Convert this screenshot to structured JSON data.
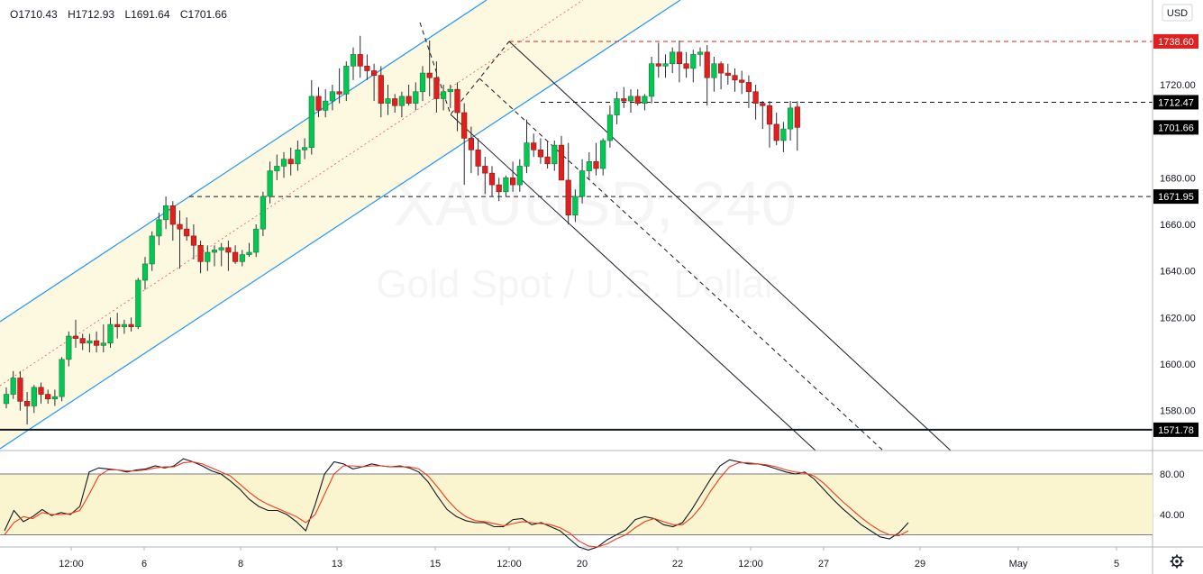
{
  "legend": {
    "open": "O1710.43",
    "high": "H1712.93",
    "low": "L1691.64",
    "close": "C1701.66"
  },
  "currency": "USD",
  "watermark": {
    "symbol": "XAUUSD, 240",
    "name": "Gold Spot / U.S. Dollar"
  },
  "colors": {
    "up": "#26a69a",
    "up_fill": "#00c853",
    "down": "#e0201e",
    "channel": "#2196f3",
    "channel_fill": "#fdf8e0",
    "stoch_band": "#fbf5cf",
    "k_line": "#131722",
    "d_line": "#f23a1e"
  },
  "settings_icon": "gear-icon",
  "chart_data": [
    {
      "type": "candlestick",
      "title": "",
      "ylim": [
        1560,
        1750
      ],
      "y_ticks": [
        1580,
        1600,
        1620,
        1640,
        1660,
        1680,
        1700,
        1720
      ],
      "y_tick_labels": [
        "1580.00",
        "1600.00",
        "1620.00",
        "1640.00",
        "1660.00",
        "1680.00",
        "1700.00",
        "1720.00"
      ],
      "x_tick_labels": [
        "12:00",
        "6",
        "8",
        "13",
        "15",
        "12:00",
        "20",
        "22",
        "12:00",
        "27",
        "29",
        "May",
        "5"
      ],
      "price_labels": [
        {
          "value": 1738.6,
          "label": "1738.60",
          "style": "red"
        },
        {
          "value": 1712.47,
          "label": "1712.47",
          "style": "dark"
        },
        {
          "value": 1701.66,
          "label": "1701.66",
          "style": "dark"
        },
        {
          "value": 1671.95,
          "label": "1671.95",
          "style": "dark"
        },
        {
          "value": 1571.78,
          "label": "1571.78",
          "style": "dark"
        }
      ],
      "horizontal_lines": [
        {
          "value": 1738.6,
          "style": "red-dashed"
        },
        {
          "value": 1712.47,
          "style": "dashed"
        },
        {
          "value": 1671.95,
          "style": "dashed"
        },
        {
          "value": 1571.78,
          "style": "solid-thick"
        }
      ],
      "candles": [
        [
          1583,
          1590,
          1581,
          1587
        ],
        [
          1587,
          1597,
          1585,
          1594
        ],
        [
          1594,
          1597,
          1580,
          1584
        ],
        [
          1584,
          1588,
          1574,
          1582
        ],
        [
          1582,
          1591,
          1579,
          1590
        ],
        [
          1590,
          1592,
          1583,
          1587
        ],
        [
          1587,
          1589,
          1583,
          1585
        ],
        [
          1585,
          1589,
          1582,
          1586
        ],
        [
          1586,
          1603,
          1584,
          1602
        ],
        [
          1602,
          1614,
          1599,
          1612
        ],
        [
          1612,
          1619,
          1607,
          1611
        ],
        [
          1611,
          1613,
          1606,
          1609
        ],
        [
          1609,
          1613,
          1605,
          1610
        ],
        [
          1610,
          1614,
          1605,
          1608
        ],
        [
          1608,
          1617,
          1605,
          1609
        ],
        [
          1609,
          1620,
          1607,
          1617
        ],
        [
          1617,
          1622,
          1611,
          1616
        ],
        [
          1616,
          1619,
          1613,
          1617
        ],
        [
          1617,
          1620,
          1614,
          1616
        ],
        [
          1616,
          1637,
          1615,
          1636
        ],
        [
          1636,
          1646,
          1632,
          1643
        ],
        [
          1643,
          1657,
          1640,
          1655
        ],
        [
          1655,
          1665,
          1651,
          1662
        ],
        [
          1662,
          1672,
          1658,
          1668
        ],
        [
          1668,
          1670,
          1653,
          1660
        ],
        [
          1660,
          1666,
          1641,
          1658
        ],
        [
          1658,
          1663,
          1653,
          1655
        ],
        [
          1655,
          1660,
          1645,
          1651
        ],
        [
          1651,
          1653,
          1639,
          1644
        ],
        [
          1644,
          1651,
          1640,
          1648
        ],
        [
          1648,
          1651,
          1642,
          1649
        ],
        [
          1649,
          1652,
          1642,
          1650
        ],
        [
          1650,
          1653,
          1640,
          1648
        ],
        [
          1648,
          1651,
          1643,
          1644
        ],
        [
          1644,
          1649,
          1642,
          1647
        ],
        [
          1647,
          1652,
          1646,
          1648
        ],
        [
          1648,
          1660,
          1646,
          1658
        ],
        [
          1658,
          1674,
          1655,
          1672
        ],
        [
          1672,
          1687,
          1669,
          1683
        ],
        [
          1683,
          1690,
          1679,
          1685
        ],
        [
          1685,
          1691,
          1680,
          1688
        ],
        [
          1688,
          1693,
          1681,
          1686
        ],
        [
          1686,
          1696,
          1683,
          1692
        ],
        [
          1692,
          1697,
          1688,
          1693
        ],
        [
          1693,
          1722,
          1690,
          1715
        ],
        [
          1715,
          1719,
          1706,
          1709
        ],
        [
          1709,
          1718,
          1706,
          1713
        ],
        [
          1713,
          1720,
          1709,
          1717
        ],
        [
          1717,
          1727,
          1712,
          1716
        ],
        [
          1716,
          1730,
          1713,
          1728
        ],
        [
          1728,
          1736,
          1722,
          1733
        ],
        [
          1733,
          1741,
          1723,
          1728
        ],
        [
          1728,
          1733,
          1722,
          1726
        ],
        [
          1726,
          1729,
          1713,
          1724
        ],
        [
          1724,
          1728,
          1706,
          1712
        ],
        [
          1712,
          1720,
          1707,
          1714
        ],
        [
          1714,
          1716,
          1708,
          1711
        ],
        [
          1711,
          1717,
          1706,
          1715
        ],
        [
          1715,
          1720,
          1711,
          1712
        ],
        [
          1712,
          1721,
          1709,
          1717
        ],
        [
          1717,
          1728,
          1713,
          1725
        ],
        [
          1725,
          1739,
          1715,
          1723
        ],
        [
          1723,
          1730,
          1708,
          1714
        ],
        [
          1714,
          1720,
          1709,
          1717
        ],
        [
          1717,
          1720,
          1710,
          1718
        ],
        [
          1718,
          1721,
          1700,
          1708
        ],
        [
          1708,
          1712,
          1677,
          1697
        ],
        [
          1697,
          1702,
          1682,
          1692
        ],
        [
          1692,
          1697,
          1681,
          1685
        ],
        [
          1685,
          1689,
          1673,
          1682
        ],
        [
          1682,
          1685,
          1672,
          1677
        ],
        [
          1677,
          1680,
          1670,
          1674
        ],
        [
          1674,
          1681,
          1672,
          1680
        ],
        [
          1680,
          1687,
          1674,
          1677
        ],
        [
          1677,
          1688,
          1674,
          1685
        ],
        [
          1685,
          1705,
          1682,
          1695
        ],
        [
          1695,
          1699,
          1689,
          1692
        ],
        [
          1692,
          1697,
          1686,
          1689
        ],
        [
          1689,
          1696,
          1684,
          1686
        ],
        [
          1686,
          1696,
          1683,
          1694
        ],
        [
          1694,
          1698,
          1679,
          1679
        ],
        [
          1679,
          1695,
          1660,
          1664
        ],
        [
          1664,
          1675,
          1661,
          1672
        ],
        [
          1672,
          1688,
          1669,
          1683
        ],
        [
          1683,
          1691,
          1679,
          1687
        ],
        [
          1687,
          1695,
          1681,
          1684
        ],
        [
          1684,
          1697,
          1681,
          1696
        ],
        [
          1696,
          1711,
          1693,
          1707
        ],
        [
          1707,
          1717,
          1703,
          1714
        ],
        [
          1714,
          1719,
          1710,
          1713
        ],
        [
          1713,
          1718,
          1708,
          1715
        ],
        [
          1715,
          1718,
          1711,
          1712
        ],
        [
          1712,
          1716,
          1709,
          1715
        ],
        [
          1715,
          1732,
          1712,
          1729
        ],
        [
          1729,
          1738,
          1723,
          1728
        ],
        [
          1728,
          1733,
          1723,
          1729
        ],
        [
          1729,
          1736,
          1725,
          1734
        ],
        [
          1734,
          1739,
          1721,
          1729
        ],
        [
          1729,
          1734,
          1723,
          1727
        ],
        [
          1727,
          1735,
          1721,
          1733
        ],
        [
          1733,
          1736,
          1728,
          1734
        ],
        [
          1734,
          1737,
          1711,
          1723
        ],
        [
          1723,
          1732,
          1717,
          1729
        ],
        [
          1729,
          1730,
          1718,
          1725
        ],
        [
          1725,
          1729,
          1720,
          1724
        ],
        [
          1724,
          1727,
          1717,
          1722
        ],
        [
          1722,
          1726,
          1716,
          1721
        ],
        [
          1721,
          1724,
          1710,
          1717
        ],
        [
          1717,
          1720,
          1705,
          1712
        ],
        [
          1712,
          1713,
          1701,
          1711
        ],
        [
          1711,
          1713,
          1693,
          1703
        ],
        [
          1703,
          1708,
          1694,
          1696
        ],
        [
          1696,
          1704,
          1691,
          1701
        ],
        [
          1701,
          1713,
          1696,
          1710
        ],
        [
          1710.43,
          1712.93,
          1691.64,
          1701.66
        ]
      ]
    },
    {
      "type": "line",
      "title": "",
      "ylim": [
        0,
        100
      ],
      "bands": [
        20,
        80
      ],
      "y_ticks": [
        40,
        80
      ],
      "y_tick_labels": [
        "40.00",
        "80.00"
      ],
      "series": [
        {
          "role": "k",
          "values": [
            24,
            44,
            33,
            38,
            45,
            39,
            42,
            40,
            48,
            82,
            86,
            85,
            84,
            82,
            84,
            85,
            88,
            86,
            88,
            95,
            92,
            88,
            83,
            80,
            73,
            65,
            55,
            48,
            44,
            44,
            40,
            33,
            24,
            50,
            80,
            92,
            90,
            85,
            87,
            90,
            88,
            87,
            88,
            86,
            82,
            72,
            58,
            45,
            38,
            34,
            32,
            32,
            28,
            28,
            35,
            36,
            30,
            32,
            28,
            24,
            16,
            8,
            5,
            8,
            15,
            20,
            25,
            35,
            38,
            36,
            30,
            28,
            32,
            45,
            60,
            75,
            88,
            94,
            92,
            90,
            90,
            88,
            85,
            82,
            80,
            82,
            75,
            65,
            55,
            46,
            38,
            30,
            24,
            18,
            16,
            22,
            32
          ]
        },
        {
          "role": "d",
          "values": [
            20,
            32,
            38,
            36,
            42,
            40,
            40,
            41,
            44,
            60,
            78,
            84,
            84,
            83,
            83,
            84,
            86,
            87,
            87,
            91,
            92,
            90,
            86,
            82,
            78,
            70,
            62,
            55,
            50,
            46,
            42,
            38,
            32,
            40,
            60,
            80,
            88,
            88,
            87,
            88,
            88,
            87,
            87,
            87,
            85,
            78,
            67,
            55,
            45,
            38,
            34,
            33,
            31,
            29,
            31,
            33,
            32,
            31,
            30,
            27,
            22,
            14,
            9,
            8,
            11,
            16,
            20,
            27,
            33,
            36,
            33,
            30,
            30,
            37,
            48,
            63,
            76,
            87,
            91,
            91,
            90,
            89,
            87,
            84,
            82,
            81,
            78,
            71,
            62,
            53,
            45,
            37,
            30,
            24,
            20,
            19,
            24
          ]
        }
      ]
    }
  ]
}
